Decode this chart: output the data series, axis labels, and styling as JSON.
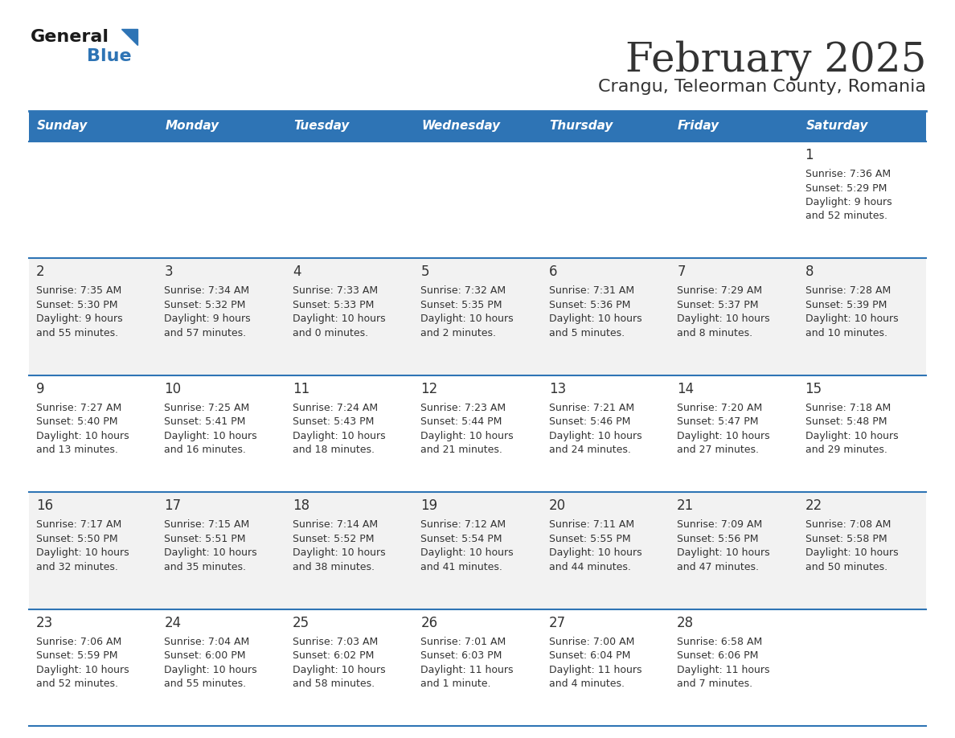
{
  "title": "February 2025",
  "subtitle": "Crangu, Teleorman County, Romania",
  "header_bg": "#2E74B5",
  "header_text_color": "#FFFFFF",
  "cell_bg_even": "#F2F2F2",
  "cell_bg_odd": "#FFFFFF",
  "border_color": "#2E74B5",
  "text_color": "#333333",
  "days_of_week": [
    "Sunday",
    "Monday",
    "Tuesday",
    "Wednesday",
    "Thursday",
    "Friday",
    "Saturday"
  ],
  "calendar": [
    [
      null,
      null,
      null,
      null,
      null,
      null,
      1
    ],
    [
      2,
      3,
      4,
      5,
      6,
      7,
      8
    ],
    [
      9,
      10,
      11,
      12,
      13,
      14,
      15
    ],
    [
      16,
      17,
      18,
      19,
      20,
      21,
      22
    ],
    [
      23,
      24,
      25,
      26,
      27,
      28,
      null
    ]
  ],
  "day_data": {
    "1": {
      "sunrise": "7:36 AM",
      "sunset": "5:29 PM",
      "daylight": "9 hours and 52 minutes."
    },
    "2": {
      "sunrise": "7:35 AM",
      "sunset": "5:30 PM",
      "daylight": "9 hours and 55 minutes."
    },
    "3": {
      "sunrise": "7:34 AM",
      "sunset": "5:32 PM",
      "daylight": "9 hours and 57 minutes."
    },
    "4": {
      "sunrise": "7:33 AM",
      "sunset": "5:33 PM",
      "daylight": "10 hours and 0 minutes."
    },
    "5": {
      "sunrise": "7:32 AM",
      "sunset": "5:35 PM",
      "daylight": "10 hours and 2 minutes."
    },
    "6": {
      "sunrise": "7:31 AM",
      "sunset": "5:36 PM",
      "daylight": "10 hours and 5 minutes."
    },
    "7": {
      "sunrise": "7:29 AM",
      "sunset": "5:37 PM",
      "daylight": "10 hours and 8 minutes."
    },
    "8": {
      "sunrise": "7:28 AM",
      "sunset": "5:39 PM",
      "daylight": "10 hours and 10 minutes."
    },
    "9": {
      "sunrise": "7:27 AM",
      "sunset": "5:40 PM",
      "daylight": "10 hours and 13 minutes."
    },
    "10": {
      "sunrise": "7:25 AM",
      "sunset": "5:41 PM",
      "daylight": "10 hours and 16 minutes."
    },
    "11": {
      "sunrise": "7:24 AM",
      "sunset": "5:43 PM",
      "daylight": "10 hours and 18 minutes."
    },
    "12": {
      "sunrise": "7:23 AM",
      "sunset": "5:44 PM",
      "daylight": "10 hours and 21 minutes."
    },
    "13": {
      "sunrise": "7:21 AM",
      "sunset": "5:46 PM",
      "daylight": "10 hours and 24 minutes."
    },
    "14": {
      "sunrise": "7:20 AM",
      "sunset": "5:47 PM",
      "daylight": "10 hours and 27 minutes."
    },
    "15": {
      "sunrise": "7:18 AM",
      "sunset": "5:48 PM",
      "daylight": "10 hours and 29 minutes."
    },
    "16": {
      "sunrise": "7:17 AM",
      "sunset": "5:50 PM",
      "daylight": "10 hours and 32 minutes."
    },
    "17": {
      "sunrise": "7:15 AM",
      "sunset": "5:51 PM",
      "daylight": "10 hours and 35 minutes."
    },
    "18": {
      "sunrise": "7:14 AM",
      "sunset": "5:52 PM",
      "daylight": "10 hours and 38 minutes."
    },
    "19": {
      "sunrise": "7:12 AM",
      "sunset": "5:54 PM",
      "daylight": "10 hours and 41 minutes."
    },
    "20": {
      "sunrise": "7:11 AM",
      "sunset": "5:55 PM",
      "daylight": "10 hours and 44 minutes."
    },
    "21": {
      "sunrise": "7:09 AM",
      "sunset": "5:56 PM",
      "daylight": "10 hours and 47 minutes."
    },
    "22": {
      "sunrise": "7:08 AM",
      "sunset": "5:58 PM",
      "daylight": "10 hours and 50 minutes."
    },
    "23": {
      "sunrise": "7:06 AM",
      "sunset": "5:59 PM",
      "daylight": "10 hours and 52 minutes."
    },
    "24": {
      "sunrise": "7:04 AM",
      "sunset": "6:00 PM",
      "daylight": "10 hours and 55 minutes."
    },
    "25": {
      "sunrise": "7:03 AM",
      "sunset": "6:02 PM",
      "daylight": "10 hours and 58 minutes."
    },
    "26": {
      "sunrise": "7:01 AM",
      "sunset": "6:03 PM",
      "daylight": "11 hours and 1 minute."
    },
    "27": {
      "sunrise": "7:00 AM",
      "sunset": "6:04 PM",
      "daylight": "11 hours and 4 minutes."
    },
    "28": {
      "sunrise": "6:58 AM",
      "sunset": "6:06 PM",
      "daylight": "11 hours and 7 minutes."
    }
  },
  "logo_text1": "General",
  "logo_text2": "Blue",
  "logo_color1": "#1a1a1a",
  "logo_color2": "#2E74B5"
}
